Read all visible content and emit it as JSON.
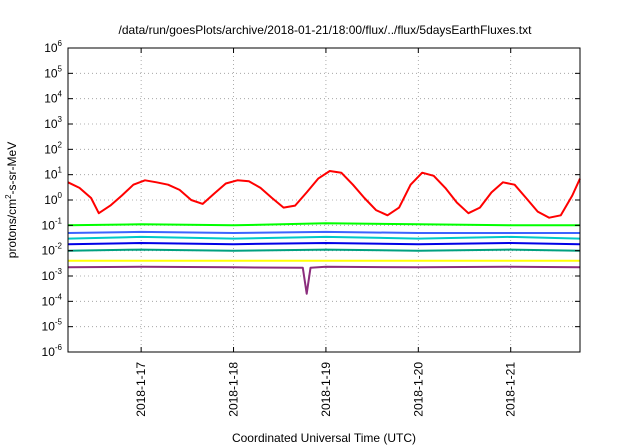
{
  "chart_data": {
    "type": "line",
    "title": "/data/run/goesPlots/archive/2018-01-21/18:00/flux/../flux/5daysEarthFluxes.txt",
    "xlabel": "Coordinated Universal Time (UTC)",
    "ylabel_parts": {
      "pre": "protons/cm",
      "sup": "2",
      "post": "-s-sr-MeV"
    },
    "y_scale": "log",
    "ylim": [
      1e-06,
      1000000.0
    ],
    "xlim": [
      "2018-01-16T05:00",
      "2018-01-21T18:00"
    ],
    "grid": true,
    "y_ticks": [
      {
        "base": "10",
        "exp": "-6",
        "value": 1e-06
      },
      {
        "base": "10",
        "exp": "-5",
        "value": 1e-05
      },
      {
        "base": "10",
        "exp": "-4",
        "value": 0.0001
      },
      {
        "base": "10",
        "exp": "-3",
        "value": 0.001
      },
      {
        "base": "10",
        "exp": "-2",
        "value": 0.01
      },
      {
        "base": "10",
        "exp": "-1",
        "value": 0.1
      },
      {
        "base": "10",
        "exp": "0",
        "value": 1
      },
      {
        "base": "10",
        "exp": "1",
        "value": 10
      },
      {
        "base": "10",
        "exp": "2",
        "value": 100
      },
      {
        "base": "10",
        "exp": "3",
        "value": 1000
      },
      {
        "base": "10",
        "exp": "4",
        "value": 10000
      },
      {
        "base": "10",
        "exp": "5",
        "value": 100000
      },
      {
        "base": "10",
        "exp": "6",
        "value": 1000000
      }
    ],
    "x_ticks": [
      {
        "label": "2018-1-17",
        "value": "2018-01-17T00:00"
      },
      {
        "label": "2018-1-18",
        "value": "2018-01-18T00:00"
      },
      {
        "label": "2018-1-19",
        "value": "2018-01-19T00:00"
      },
      {
        "label": "2018-1-20",
        "value": "2018-01-20T00:00"
      },
      {
        "label": "2018-1-21",
        "value": "2018-01-21T00:00"
      }
    ],
    "series": [
      {
        "color": "#ff0000",
        "x": [
          "2018-01-16T05:00",
          "2018-01-16T08:00",
          "2018-01-16T11:00",
          "2018-01-16T13:00",
          "2018-01-16T16:00",
          "2018-01-16T19:00",
          "2018-01-16T22:00",
          "2018-01-17T01:00",
          "2018-01-17T04:00",
          "2018-01-17T07:00",
          "2018-01-17T10:00",
          "2018-01-17T13:00",
          "2018-01-17T16:00",
          "2018-01-17T19:00",
          "2018-01-17T22:00",
          "2018-01-18T01:00",
          "2018-01-18T04:00",
          "2018-01-18T07:00",
          "2018-01-18T10:00",
          "2018-01-18T13:00",
          "2018-01-18T16:00",
          "2018-01-18T19:00",
          "2018-01-18T22:00",
          "2018-01-19T01:00",
          "2018-01-19T04:00",
          "2018-01-19T07:00",
          "2018-01-19T10:00",
          "2018-01-19T13:00",
          "2018-01-19T16:00",
          "2018-01-19T19:00",
          "2018-01-19T22:00",
          "2018-01-20T01:00",
          "2018-01-20T04:00",
          "2018-01-20T07:00",
          "2018-01-20T10:00",
          "2018-01-20T13:00",
          "2018-01-20T16:00",
          "2018-01-20T19:00",
          "2018-01-20T22:00",
          "2018-01-21T01:00",
          "2018-01-21T04:00",
          "2018-01-21T07:00",
          "2018-01-21T10:00",
          "2018-01-21T13:00",
          "2018-01-21T16:00",
          "2018-01-21T18:00"
        ],
        "values": [
          5,
          3,
          1.2,
          0.3,
          0.6,
          1.5,
          4,
          6,
          5,
          4,
          2.5,
          1,
          0.7,
          1.8,
          4.5,
          6,
          5.5,
          3,
          1.2,
          0.5,
          0.6,
          2,
          7,
          14,
          12,
          4,
          1.2,
          0.4,
          0.25,
          0.5,
          4,
          12,
          9,
          3,
          0.8,
          0.3,
          0.5,
          2,
          5,
          4,
          1.2,
          0.35,
          0.2,
          0.25,
          1.5,
          7
        ]
      },
      {
        "color": "#00ff00",
        "x": [
          "2018-01-16T05:00",
          "2018-01-17T00:00",
          "2018-01-18T00:00",
          "2018-01-19T00:00",
          "2018-01-20T00:00",
          "2018-01-21T00:00",
          "2018-01-21T18:00"
        ],
        "values": [
          0.1,
          0.11,
          0.1,
          0.12,
          0.11,
          0.1,
          0.1
        ]
      },
      {
        "color": "#00c8c8",
        "x": [
          "2018-01-16T05:00",
          "2018-01-17T00:00",
          "2018-01-18T00:00",
          "2018-01-19T00:00",
          "2018-01-20T00:00",
          "2018-01-21T00:00",
          "2018-01-21T18:00"
        ],
        "values": [
          0.03,
          0.035,
          0.03,
          0.035,
          0.03,
          0.035,
          0.03
        ]
      },
      {
        "color": "#3c64ff",
        "x": [
          "2018-01-16T05:00",
          "2018-01-17T00:00",
          "2018-01-18T00:00",
          "2018-01-19T00:00",
          "2018-01-20T00:00",
          "2018-01-21T00:00",
          "2018-01-21T18:00"
        ],
        "values": [
          0.05,
          0.055,
          0.05,
          0.055,
          0.05,
          0.05,
          0.05
        ]
      },
      {
        "color": "#0000e6",
        "x": [
          "2018-01-16T05:00",
          "2018-01-17T00:00",
          "2018-01-18T00:00",
          "2018-01-19T00:00",
          "2018-01-20T00:00",
          "2018-01-21T00:00",
          "2018-01-21T18:00"
        ],
        "values": [
          0.018,
          0.02,
          0.018,
          0.02,
          0.018,
          0.02,
          0.018
        ]
      },
      {
        "color": "#00a080",
        "x": [
          "2018-01-16T05:00",
          "2018-01-17T00:00",
          "2018-01-18T00:00",
          "2018-01-19T00:00",
          "2018-01-20T00:00",
          "2018-01-21T00:00",
          "2018-01-21T18:00"
        ],
        "values": [
          0.01,
          0.011,
          0.01,
          0.011,
          0.01,
          0.011,
          0.01
        ]
      },
      {
        "color": "#ffff00",
        "x": [
          "2018-01-16T05:00",
          "2018-01-17T00:00",
          "2018-01-18T00:00",
          "2018-01-19T00:00",
          "2018-01-20T00:00",
          "2018-01-21T00:00",
          "2018-01-21T18:00"
        ],
        "values": [
          0.004,
          0.004,
          0.004,
          0.004,
          0.004,
          0.004,
          0.004
        ]
      },
      {
        "color": "#8b2d7d",
        "x": [
          "2018-01-16T05:00",
          "2018-01-17T00:00",
          "2018-01-18T00:00",
          "2018-01-18T18:00",
          "2018-01-18T19:00",
          "2018-01-18T20:00",
          "2018-01-19T00:00",
          "2018-01-20T00:00",
          "2018-01-21T00:00",
          "2018-01-21T18:00"
        ],
        "values": [
          0.0022,
          0.0023,
          0.0022,
          0.0021,
          0.0002,
          0.0021,
          0.0023,
          0.0022,
          0.0023,
          0.0022
        ]
      }
    ]
  }
}
